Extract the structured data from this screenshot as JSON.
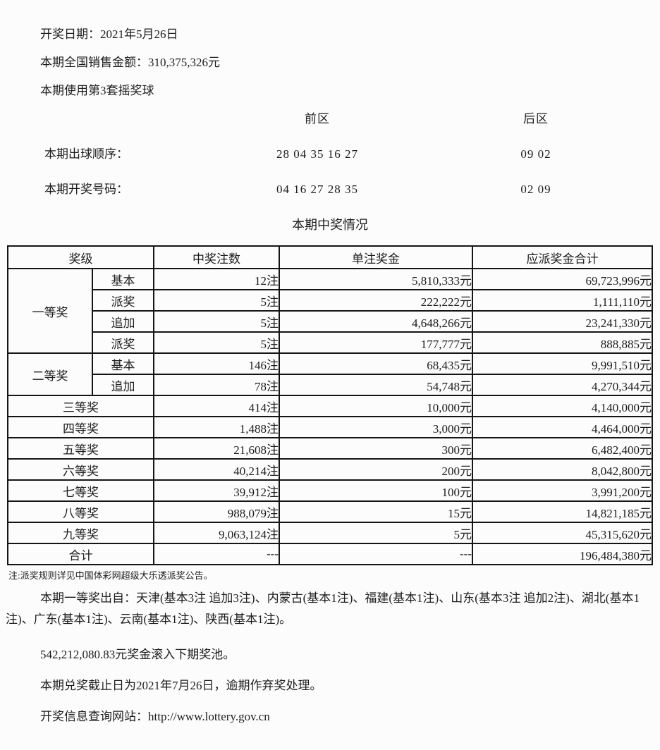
{
  "colors": {
    "text": "#1d1d1d",
    "border": "#151515",
    "background": "#fcfcfc"
  },
  "intro": {
    "lines": [
      "开奖日期：2021年5月26日",
      "本期全国销售金额：310,375,326元",
      "本期使用第3套摇奖球"
    ]
  },
  "zones": {
    "front_label": "前区",
    "back_label": "后区",
    "draw_order_label": "本期出球顺序：",
    "draw_order_front": "28  04  35  16  27",
    "draw_order_back": "09  02",
    "winning_numbers_label": "本期开奖号码：",
    "winning_numbers_front": "04  16  27  28  35",
    "winning_numbers_back": "02  09"
  },
  "table": {
    "title": "本期中奖情况",
    "headers": [
      "奖级",
      "中奖注数",
      "单注奖金",
      "应派奖金合计"
    ],
    "rows": [
      {
        "cells": [
          {
            "t": "一等奖",
            "rowspan": 4,
            "a": "c"
          },
          {
            "t": "基本",
            "a": "c"
          },
          {
            "t": "12注",
            "a": "r"
          },
          {
            "t": "5,810,333元",
            "a": "r"
          },
          {
            "t": "69,723,996元",
            "a": "r"
          }
        ]
      },
      {
        "cells": [
          {
            "t": "派奖",
            "a": "c"
          },
          {
            "t": "5注",
            "a": "r"
          },
          {
            "t": "222,222元",
            "a": "r"
          },
          {
            "t": "1,111,110元",
            "a": "r"
          }
        ]
      },
      {
        "cells": [
          {
            "t": "追加",
            "a": "c"
          },
          {
            "t": "5注",
            "a": "r"
          },
          {
            "t": "4,648,266元",
            "a": "r"
          },
          {
            "t": "23,241,330元",
            "a": "r"
          }
        ]
      },
      {
        "cells": [
          {
            "t": "派奖",
            "a": "c"
          },
          {
            "t": "5注",
            "a": "r"
          },
          {
            "t": "177,777元",
            "a": "r"
          },
          {
            "t": "888,885元",
            "a": "r"
          }
        ]
      },
      {
        "cells": [
          {
            "t": "二等奖",
            "rowspan": 2,
            "a": "c"
          },
          {
            "t": "基本",
            "a": "c"
          },
          {
            "t": "146注",
            "a": "r"
          },
          {
            "t": "68,435元",
            "a": "r"
          },
          {
            "t": "9,991,510元",
            "a": "r"
          }
        ]
      },
      {
        "cells": [
          {
            "t": "追加",
            "a": "c"
          },
          {
            "t": "78注",
            "a": "r"
          },
          {
            "t": "54,748元",
            "a": "r"
          },
          {
            "t": "4,270,344元",
            "a": "r"
          }
        ]
      },
      {
        "cells": [
          {
            "t": "三等奖",
            "colspan": 2,
            "a": "c"
          },
          {
            "t": "414注",
            "a": "r"
          },
          {
            "t": "10,000元",
            "a": "r"
          },
          {
            "t": "4,140,000元",
            "a": "r"
          }
        ]
      },
      {
        "cells": [
          {
            "t": "四等奖",
            "colspan": 2,
            "a": "c"
          },
          {
            "t": "1,488注",
            "a": "r"
          },
          {
            "t": "3,000元",
            "a": "r"
          },
          {
            "t": "4,464,000元",
            "a": "r"
          }
        ]
      },
      {
        "cells": [
          {
            "t": "五等奖",
            "colspan": 2,
            "a": "c"
          },
          {
            "t": "21,608注",
            "a": "r"
          },
          {
            "t": "300元",
            "a": "r"
          },
          {
            "t": "6,482,400元",
            "a": "r"
          }
        ]
      },
      {
        "cells": [
          {
            "t": "六等奖",
            "colspan": 2,
            "a": "c"
          },
          {
            "t": "40,214注",
            "a": "r"
          },
          {
            "t": "200元",
            "a": "r"
          },
          {
            "t": "8,042,800元",
            "a": "r"
          }
        ]
      },
      {
        "cells": [
          {
            "t": "七等奖",
            "colspan": 2,
            "a": "c"
          },
          {
            "t": "39,912注",
            "a": "r"
          },
          {
            "t": "100元",
            "a": "r"
          },
          {
            "t": "3,991,200元",
            "a": "r"
          }
        ]
      },
      {
        "cells": [
          {
            "t": "八等奖",
            "colspan": 2,
            "a": "c"
          },
          {
            "t": "988,079注",
            "a": "r"
          },
          {
            "t": "15元",
            "a": "r"
          },
          {
            "t": "14,821,185元",
            "a": "r"
          }
        ]
      },
      {
        "cells": [
          {
            "t": "九等奖",
            "colspan": 2,
            "a": "c"
          },
          {
            "t": "9,063,124注",
            "a": "r"
          },
          {
            "t": "5元",
            "a": "r"
          },
          {
            "t": "45,315,620元",
            "a": "r"
          }
        ]
      },
      {
        "cells": [
          {
            "t": "合计",
            "colspan": 2,
            "a": "c"
          },
          {
            "t": "---",
            "a": "r"
          },
          {
            "t": "---",
            "a": "r"
          },
          {
            "t": "196,484,380元",
            "a": "r"
          }
        ]
      }
    ]
  },
  "footer": {
    "note": "注:派奖规则详见中国体彩网超级大乐透派奖公告。",
    "first_prize_origin": "本期一等奖出自：天津(基本3注 追加3注)、内蒙古(基本1注)、福建(基本1注)、山东(基本3注 追加2注)、湖北(基本1注)、广东(基本1注)、云南(基本1注)、陕西(基本1注)。",
    "rollover": "542,212,080.83元奖金滚入下期奖池。",
    "deadline": "本期兑奖截止日为2021年7月26日，逾期作弃奖处理。",
    "website": "开奖信息查询网站：http://www.lottery.gov.cn"
  }
}
